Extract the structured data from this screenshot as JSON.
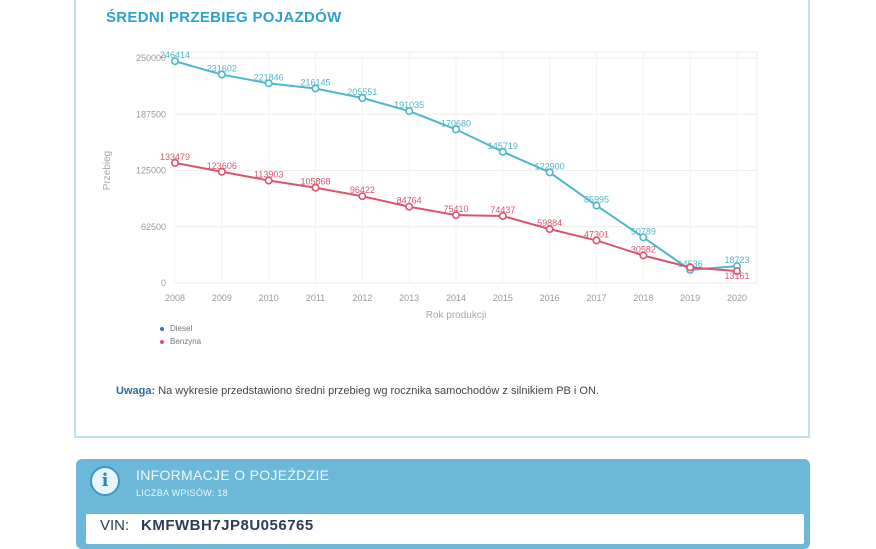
{
  "section": {
    "title": "ŚREDNI PRZEBIEG POJAZDÓW"
  },
  "chart_data": {
    "type": "line",
    "title": "",
    "xlabel": "Rok produkcji",
    "ylabel": "Przebieg",
    "x": [
      "2008",
      "2009",
      "2010",
      "2011",
      "2012",
      "2013",
      "2014",
      "2015",
      "2016",
      "2017",
      "2018",
      "2019",
      "2020"
    ],
    "yticks": [
      0,
      62500,
      125000,
      187500,
      250000
    ],
    "ytick_labels": [
      "0",
      "62500",
      "125000",
      "187500",
      "250000"
    ],
    "ylim": [
      0,
      250000
    ],
    "grid": true,
    "legend_position": "bottom-left",
    "series": [
      {
        "name": "Diesel",
        "color": "#4fb7c9",
        "values": [
          246414,
          231602,
          221846,
          216145,
          205551,
          191035,
          170680,
          145719,
          122900,
          85995,
          50789,
          14536,
          18723
        ],
        "labels": [
          "246414",
          "231602",
          "221846",
          "216145",
          "205551",
          "191035",
          "170680",
          "145719",
          "122900",
          "85995",
          "50789",
          "14536",
          "18723"
        ]
      },
      {
        "name": "Benzyna",
        "color": "#d9566e",
        "values": [
          133479,
          123606,
          113903,
          105868,
          96422,
          84764,
          75410,
          74437,
          59884,
          47301,
          30582,
          17350,
          13161
        ],
        "labels": [
          "133479",
          "123606",
          "113903",
          "105868",
          "96422",
          "84764",
          "75410",
          "74437",
          "59884",
          "47301",
          "30582",
          "",
          "13161"
        ]
      }
    ]
  },
  "legend": {
    "diesel": "Diesel",
    "benzyna": "Benzyna",
    "diesel_color": "#3a6fb0",
    "benzyna_color": "#d9566e"
  },
  "note": {
    "label": "Uwaga:",
    "text": "Na wykresie przedstawiono średni przebieg wg rocznika samochodów z silnikiem PB i ON."
  },
  "info": {
    "icon": "info-icon",
    "title": "INFORMACJE O POJEŹDZIE",
    "subtitle": "LICZBA WPISÓW: 18",
    "vin_label": "VIN:",
    "vin_value": "KMFWBH7JP8U056765"
  }
}
